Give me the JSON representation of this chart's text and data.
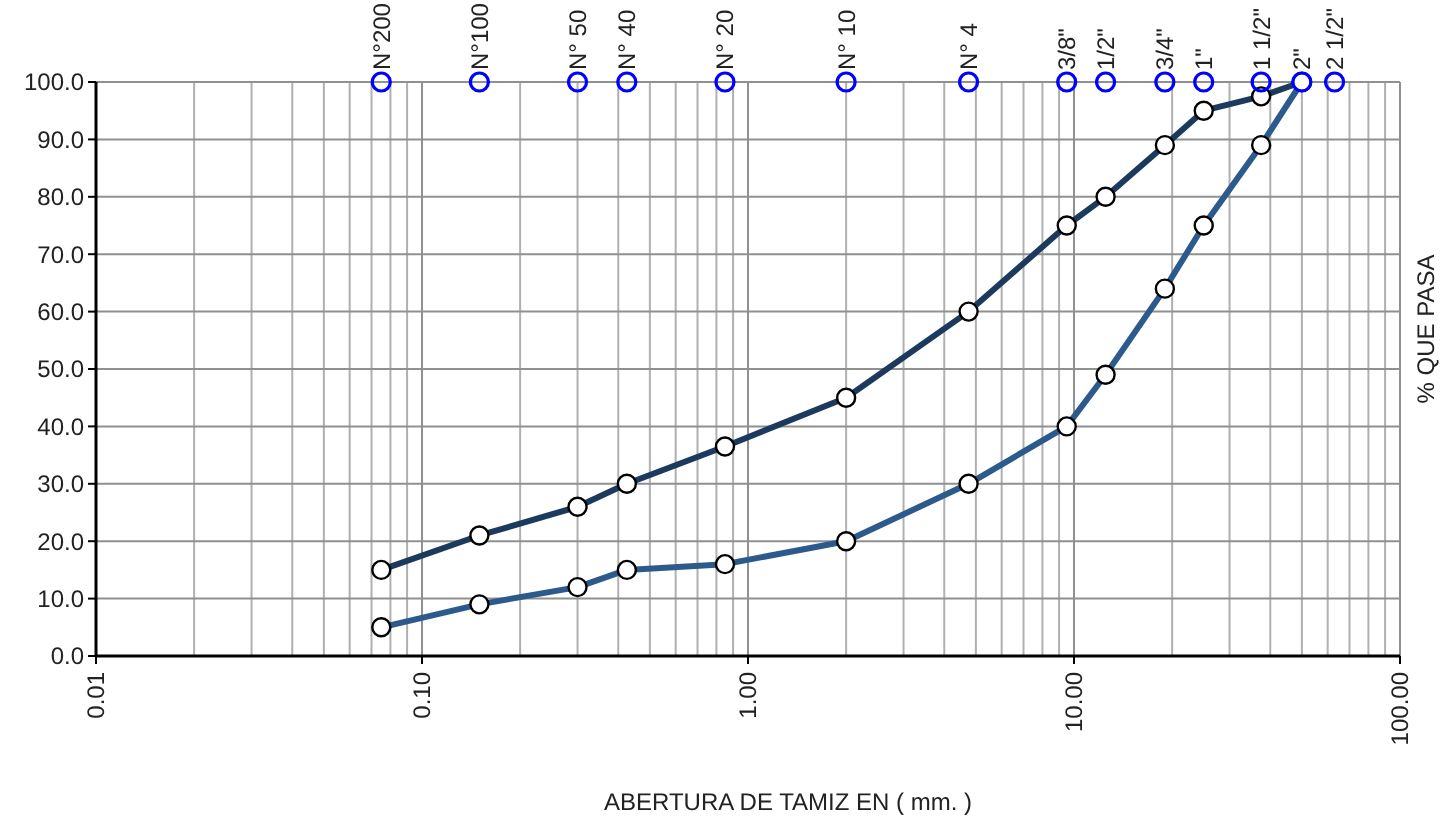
{
  "chart_data": {
    "type": "line",
    "xlabel": "ABERTURA DE TAMIZ EN ( mm. )",
    "ylabel": "% QUE PASA",
    "log": "x",
    "grid": true,
    "marker": "circle",
    "line_style": "solid",
    "xlim": [
      0.01,
      100
    ],
    "xticks": [
      {
        "value": 0.01,
        "label": "0.01"
      },
      {
        "value": 0.1,
        "label": "0.10"
      },
      {
        "value": 1,
        "label": "1.00"
      },
      {
        "value": 10,
        "label": "10.00"
      },
      {
        "value": 100,
        "label": "100.00"
      }
    ],
    "ylim": [
      0,
      100
    ],
    "yticks": [
      {
        "value": 0,
        "label": "0.0"
      },
      {
        "value": 10,
        "label": "10.0"
      },
      {
        "value": 20,
        "label": "20.0"
      },
      {
        "value": 30,
        "label": "30.0"
      },
      {
        "value": 40,
        "label": "40.0"
      },
      {
        "value": 50,
        "label": "50.0"
      },
      {
        "value": 60,
        "label": "60.0"
      },
      {
        "value": 70,
        "label": "70.0"
      },
      {
        "value": 80,
        "label": "80.0"
      },
      {
        "value": 90,
        "label": "90.0"
      },
      {
        "value": 100,
        "label": "100.0"
      }
    ],
    "annotations": [
      {
        "text": "N°200",
        "x": 0.075,
        "y": 100
      },
      {
        "text": "N°100",
        "x": 0.15,
        "y": 100
      },
      {
        "text": "N° 50",
        "x": 0.3,
        "y": 100
      },
      {
        "text": "N° 40",
        "x": 0.425,
        "y": 100
      },
      {
        "text": "N° 20",
        "x": 0.85,
        "y": 100
      },
      {
        "text": "N° 10",
        "x": 2,
        "y": 100
      },
      {
        "text": "N° 4",
        "x": 4.75,
        "y": 100
      },
      {
        "text": "3/8\"",
        "x": 9.5,
        "y": 100
      },
      {
        "text": "1/2\"",
        "x": 12.5,
        "y": 100
      },
      {
        "text": "3/4\"",
        "x": 19,
        "y": 100
      },
      {
        "text": "1\"",
        "x": 25,
        "y": 100
      },
      {
        "text": "1 1/2\"",
        "x": 37.5,
        "y": 100
      },
      {
        "text": "2\"",
        "x": 50,
        "y": 100
      },
      {
        "text": "2 1/2\"",
        "x": 63,
        "y": 100
      }
    ],
    "series": [
      {
        "type": "line",
        "color": "#1c3a5e",
        "x": [
          0.075,
          0.15,
          0.3,
          0.425,
          0.85,
          2,
          4.75,
          9.5,
          12.5,
          19,
          25,
          37.5,
          50
        ],
        "values": [
          15,
          21,
          26,
          30,
          36.5,
          45,
          60,
          75,
          80,
          89,
          95,
          97.5,
          100
        ]
      },
      {
        "type": "line",
        "color": "#2d5a8c",
        "x": [
          0.075,
          0.15,
          0.3,
          0.425,
          0.85,
          2,
          4.75,
          9.5,
          12.5,
          19,
          25,
          37.5,
          50
        ],
        "values": [
          5,
          9,
          12,
          15,
          16,
          20,
          30,
          40,
          49,
          64,
          75,
          89,
          100
        ]
      },
      {
        "type": "scatter",
        "color": "#0000ff",
        "x": [
          0.075,
          0.15,
          0.3,
          0.425,
          0.85,
          2,
          4.75,
          9.5,
          12.5,
          19,
          25,
          37.5,
          50,
          63
        ],
        "values": [
          100,
          100,
          100,
          100,
          100,
          100,
          100,
          100,
          100,
          100,
          100,
          100,
          100,
          100
        ]
      }
    ]
  }
}
